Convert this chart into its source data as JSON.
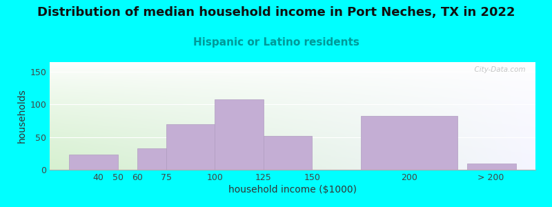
{
  "title": "Distribution of median household income in Port Neches, TX in 2022",
  "subtitle": "Hispanic or Latino residents",
  "xlabel": "household income ($1000)",
  "ylabel": "households",
  "background_color": "#00FFFF",
  "bar_color": "#c4aed4",
  "bar_edgecolor": "#b09cc0",
  "bar_lefts": [
    25,
    60,
    75,
    100,
    125,
    175,
    230
  ],
  "bar_widths": [
    25,
    15,
    25,
    25,
    25,
    50,
    25
  ],
  "bar_heights": [
    23,
    33,
    70,
    108,
    52,
    83,
    10
  ],
  "yticks": [
    0,
    50,
    100,
    150
  ],
  "xtick_positions": [
    40,
    50,
    60,
    75,
    100,
    125,
    150,
    200,
    242
  ],
  "xtick_labels": [
    "40",
    "50",
    "60",
    "75",
    "100",
    "125",
    "150",
    "200",
    "> 200"
  ],
  "xlim": [
    15,
    265
  ],
  "ylim": [
    0,
    165
  ],
  "watermark": "  City-Data.com",
  "title_fontsize": 13,
  "subtitle_fontsize": 11,
  "axis_label_fontsize": 10,
  "tick_fontsize": 9,
  "subtitle_color": "#009999"
}
